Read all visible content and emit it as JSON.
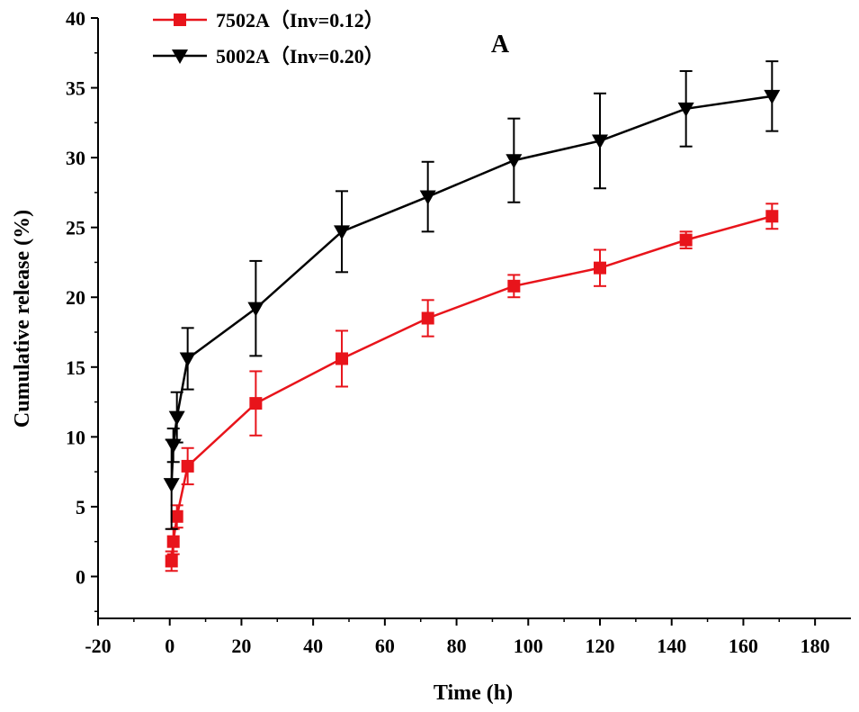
{
  "chart_data": {
    "type": "line",
    "title": "",
    "panel_label": "A",
    "xlabel": "Time (h)",
    "ylabel": "Cumulative release (%)",
    "xlim": [
      -20,
      190
    ],
    "ylim": [
      -3,
      40
    ],
    "x_ticks": [
      -20,
      0,
      20,
      40,
      60,
      80,
      100,
      120,
      140,
      160,
      180
    ],
    "x_tick_labels": [
      "-20",
      "0",
      "20",
      "40",
      "60",
      "80",
      "100",
      "120",
      "140",
      "160",
      "180"
    ],
    "y_ticks": [
      0,
      5,
      10,
      15,
      20,
      25,
      30,
      35,
      40
    ],
    "y_tick_labels": [
      "0",
      "5",
      "10",
      "15",
      "20",
      "25",
      "30",
      "35",
      "40"
    ],
    "legend_position": "top-left",
    "series": [
      {
        "name": "7502A（Inv=0.12）",
        "color": "#e8141b",
        "marker": "square",
        "x": [
          0.5,
          1,
          2,
          5,
          24,
          48,
          72,
          96,
          120,
          144,
          168
        ],
        "y": [
          1.1,
          2.5,
          4.3,
          7.9,
          12.4,
          15.6,
          18.5,
          20.8,
          22.1,
          24.1,
          25.8
        ],
        "err": [
          0.7,
          0.9,
          0.8,
          1.3,
          2.3,
          2.0,
          1.3,
          0.8,
          1.3,
          0.6,
          0.9
        ]
      },
      {
        "name": "5002A（Inv=0.20）",
        "color": "#000000",
        "marker": "triangle-down",
        "x": [
          0.5,
          1,
          2,
          5,
          24,
          48,
          72,
          96,
          120,
          144,
          168
        ],
        "y": [
          6.6,
          9.4,
          11.4,
          15.6,
          19.2,
          24.7,
          27.2,
          29.8,
          31.2,
          33.5,
          34.4
        ],
        "err": [
          3.2,
          1.2,
          1.8,
          2.2,
          3.4,
          2.9,
          2.5,
          3.0,
          3.4,
          2.7,
          2.5
        ]
      }
    ]
  }
}
